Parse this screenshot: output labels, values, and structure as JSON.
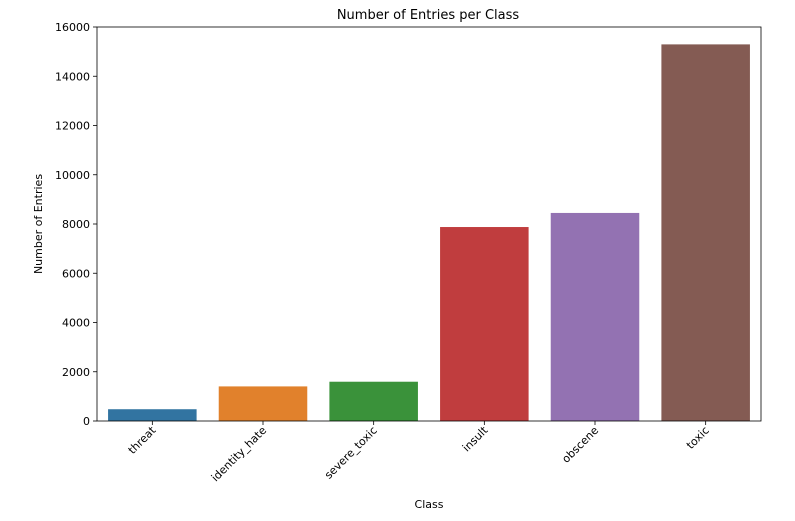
{
  "chart_data": {
    "type": "bar",
    "title": "Number of Entries per Class",
    "xlabel": "Class",
    "ylabel": "Number of Entries",
    "categories": [
      "threat",
      "identity_hate",
      "severe_toxic",
      "insult",
      "obscene",
      "toxic"
    ],
    "values": [
      478,
      1405,
      1595,
      7877,
      8449,
      15294
    ],
    "colors": [
      "#3274a1",
      "#e1812c",
      "#3a923a",
      "#c03d3e",
      "#9372b2",
      "#845b53"
    ],
    "yticks": [
      "0",
      "2000",
      "4000",
      "6000",
      "8000",
      "10000",
      "12000",
      "14000",
      "16000"
    ],
    "ylim": [
      0,
      16000
    ],
    "grid": false,
    "legend": "none"
  }
}
